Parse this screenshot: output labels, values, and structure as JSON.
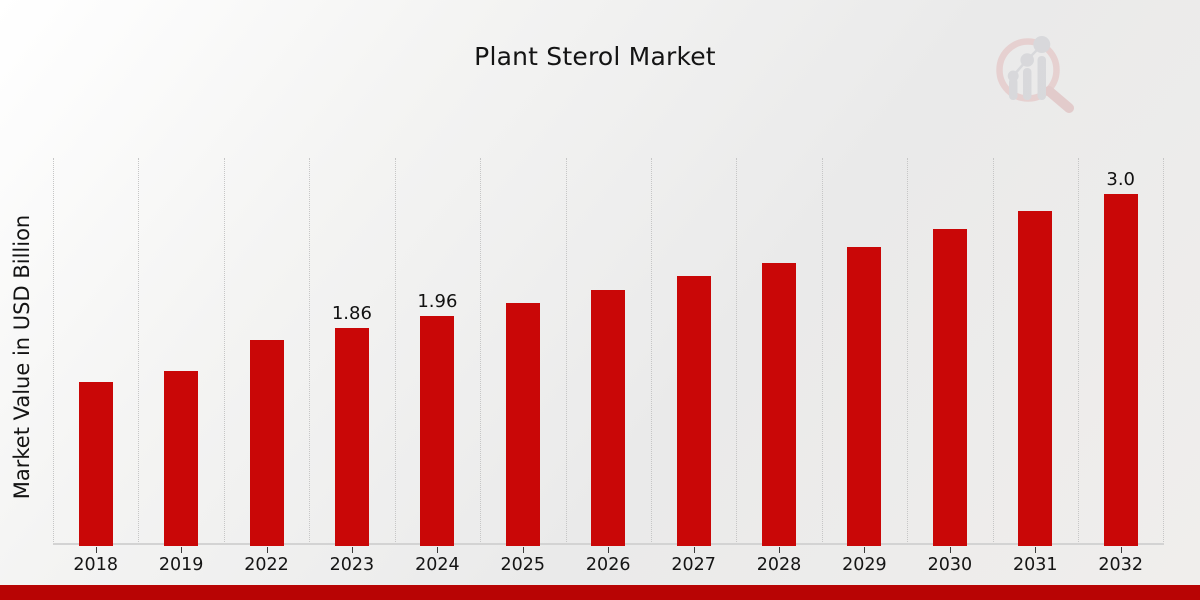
{
  "title": "Plant Sterol Market",
  "ylabel": "Market Value in USD Billion",
  "watermark_icon": "magnifier-bar-chart-logo",
  "colors": {
    "bar": "#c90707",
    "banner": "#b80404",
    "grid": "#c6c6c6",
    "axis_line": "#d3d3d3",
    "tick": "#3a3a3a",
    "text": "#141414",
    "watermark_ring": "#e2bcbc",
    "watermark_handle": "#dcb2b2",
    "watermark_bars": "#c9cbd0"
  },
  "chart_data": {
    "type": "bar",
    "title": "Plant Sterol Market",
    "xlabel": "",
    "ylabel": "Market Value in USD Billion",
    "categories": [
      "2018",
      "2019",
      "2022",
      "2023",
      "2024",
      "2025",
      "2026",
      "2027",
      "2028",
      "2029",
      "2030",
      "2031",
      "2032"
    ],
    "values": [
      1.4,
      1.49,
      1.76,
      1.86,
      1.96,
      2.07,
      2.18,
      2.3,
      2.41,
      2.55,
      2.7,
      2.86,
      3.0
    ],
    "value_labels": [
      "",
      "",
      "",
      "1.86",
      "1.96",
      "",
      "",
      "",
      "",
      "",
      "",
      "",
      "3.0"
    ],
    "ylim": [
      0,
      3.31
    ],
    "grid": "vertical-dotted",
    "legend": "none",
    "bar_color": "#c90707"
  }
}
